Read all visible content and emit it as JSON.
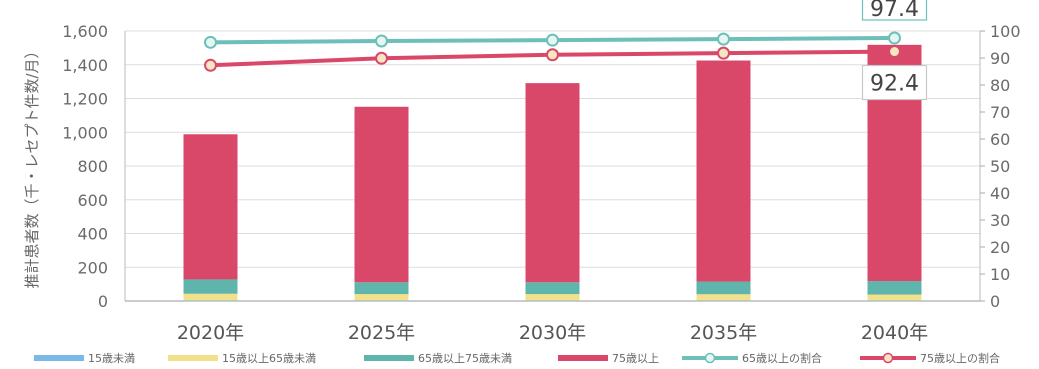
{
  "chart_data": {
    "type": "bar",
    "stacked": true,
    "categories": [
      "2020年",
      "2025年",
      "2030年",
      "2035年",
      "2040年"
    ],
    "ylabel": "推計患者数（千・レセプト件数/月）",
    "ylim": [
      0,
      1600
    ],
    "yticks": [
      "0",
      "200",
      "400",
      "600",
      "800",
      "1,000",
      "1,200",
      "1,400",
      "1,600"
    ],
    "y2lim": [
      0,
      100
    ],
    "y2ticks": [
      "0",
      "10",
      "20",
      "30",
      "40",
      "50",
      "60",
      "70",
      "80",
      "90",
      "100"
    ],
    "grid": true,
    "legend_position": "bottom",
    "series": [
      {
        "name": "15歳未満",
        "kind": "bar",
        "color": "#7ab8e8",
        "values": [
          3,
          3,
          3,
          3,
          3
        ]
      },
      {
        "name": "15歳以上65歳未満",
        "kind": "bar",
        "color": "#f3e08a",
        "values": [
          40,
          38,
          38,
          37,
          35
        ]
      },
      {
        "name": "65歳以上75歳未満",
        "kind": "bar",
        "color": "#5fb5ab",
        "values": [
          85,
          70,
          70,
          75,
          80
        ]
      },
      {
        "name": "75歳以上",
        "kind": "bar",
        "color": "#d94868",
        "values": [
          860,
          1040,
          1180,
          1310,
          1400
        ]
      },
      {
        "name": "65歳以上の割合",
        "kind": "line",
        "axis": "right",
        "color": "#6cc0b8",
        "values": [
          95.8,
          96.3,
          96.6,
          97.0,
          97.4
        ]
      },
      {
        "name": "75歳以上の割合",
        "kind": "line",
        "axis": "right",
        "color": "#d94868",
        "values": [
          87.3,
          89.9,
          91.2,
          91.8,
          92.4
        ]
      }
    ],
    "annotations": [
      {
        "text": "97.4",
        "series": "65歳以上の割合",
        "category": "2040年"
      },
      {
        "text": "92.4",
        "series": "75歳以上の割合",
        "category": "2040年"
      }
    ]
  }
}
